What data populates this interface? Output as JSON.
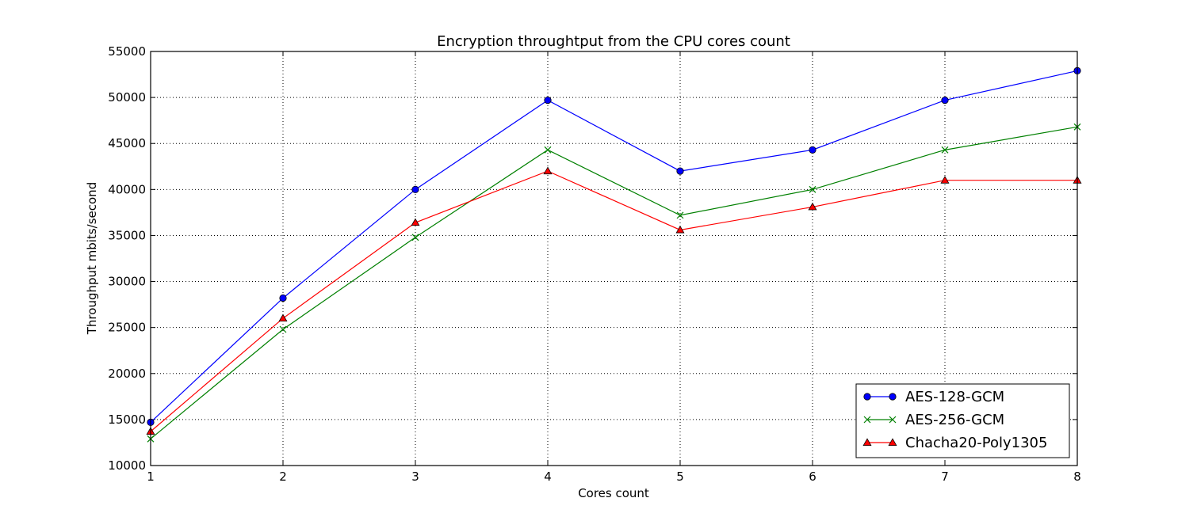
{
  "chart_data": {
    "type": "line",
    "title": "Encryption throughtput from the CPU cores count",
    "xlabel": "Cores count",
    "ylabel": "Throughput mbits/second",
    "x": [
      1,
      2,
      3,
      4,
      5,
      6,
      7,
      8
    ],
    "xlim": [
      1,
      8
    ],
    "ylim": [
      10000,
      55000
    ],
    "xticks": [
      1,
      2,
      3,
      4,
      5,
      6,
      7,
      8
    ],
    "yticks": [
      10000,
      15000,
      20000,
      25000,
      30000,
      35000,
      40000,
      45000,
      50000,
      55000
    ],
    "grid": true,
    "legend_position": "bottom-right",
    "series": [
      {
        "name": "AES-128-GCM",
        "color": "#0000ff",
        "marker": "circle",
        "values": [
          14700,
          28200,
          40000,
          49700,
          42000,
          44300,
          49700,
          52900
        ]
      },
      {
        "name": "AES-256-GCM",
        "color": "#008000",
        "marker": "x",
        "values": [
          12900,
          24800,
          34800,
          44300,
          37200,
          40000,
          44300,
          46800
        ]
      },
      {
        "name": "Chacha20-Poly1305",
        "color": "#ff0000",
        "marker": "triangle",
        "values": [
          13700,
          26000,
          36400,
          42000,
          35600,
          38100,
          41000,
          41000
        ]
      }
    ]
  }
}
